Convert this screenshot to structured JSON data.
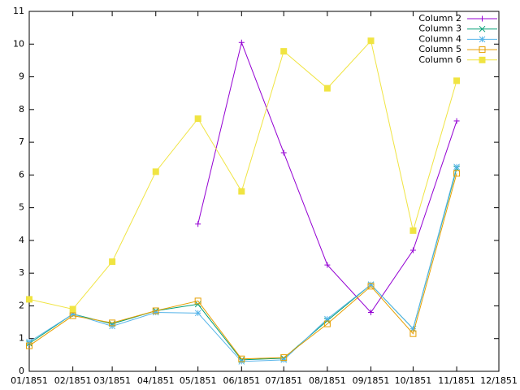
{
  "chart_data": {
    "type": "line",
    "x": [
      "01/1851",
      "02/1851",
      "03/1851",
      "04/1851",
      "05/1851",
      "06/1851",
      "07/1851",
      "08/1851",
      "09/1851",
      "10/1851",
      "11/1851"
    ],
    "xlim": [
      "01/1851",
      "12/1851"
    ],
    "xticks": [
      "01/1851",
      "02/1851",
      "03/1851",
      "04/1851",
      "05/1851",
      "06/1851",
      "07/1851",
      "08/1851",
      "09/1851",
      "10/1851",
      "11/1851",
      "12/1851"
    ],
    "ylim": [
      0,
      11
    ],
    "yticks": [
      0,
      1,
      2,
      3,
      4,
      5,
      6,
      7,
      8,
      9,
      10,
      11
    ],
    "legend": "top-right",
    "series": [
      {
        "name": "Column 2",
        "color": "#9400d3",
        "marker": "plus",
        "values": [
          null,
          null,
          null,
          null,
          4.5,
          10.05,
          6.68,
          3.25,
          1.8,
          3.7,
          7.65
        ]
      },
      {
        "name": "Column 3",
        "color": "#009e73",
        "marker": "cross",
        "values": [
          0.85,
          1.75,
          1.45,
          1.85,
          2.05,
          0.35,
          0.4,
          1.55,
          2.65,
          1.3,
          6.2
        ]
      },
      {
        "name": "Column 4",
        "color": "#56b4e9",
        "marker": "star",
        "values": [
          0.9,
          1.75,
          1.38,
          1.8,
          1.78,
          0.3,
          0.35,
          1.6,
          2.65,
          1.3,
          6.25
        ]
      },
      {
        "name": "Column 5",
        "color": "#e69f00",
        "marker": "open-square",
        "values": [
          0.78,
          1.7,
          1.48,
          1.85,
          2.15,
          0.38,
          0.42,
          1.45,
          2.6,
          1.15,
          6.05
        ]
      },
      {
        "name": "Column 6",
        "color": "#f0e442",
        "marker": "filled-square",
        "values": [
          2.2,
          1.9,
          3.35,
          6.1,
          7.72,
          5.5,
          9.78,
          8.65,
          10.1,
          4.3,
          8.88
        ]
      }
    ]
  }
}
